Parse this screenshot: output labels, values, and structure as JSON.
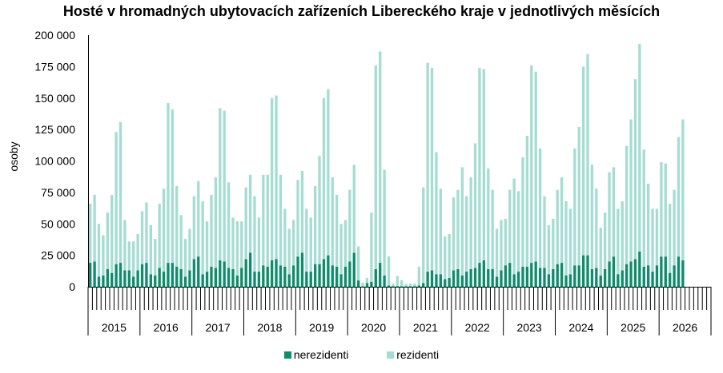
{
  "chart_data": {
    "type": "bar",
    "stacked": true,
    "title": "Hosté v hromadných ubytovacích zařízeních Libereckého kraje v jednotlivých měsících",
    "ylabel": "osoby",
    "xlabel": "",
    "ylim": [
      0,
      200000
    ],
    "yticks": [
      0,
      25000,
      50000,
      75000,
      100000,
      125000,
      150000,
      175000,
      200000
    ],
    "ytick_labels": [
      "0",
      "25 000",
      "50 000",
      "75 000",
      "100 000",
      "125 000",
      "150 000",
      "175 000",
      "200 000"
    ],
    "years": [
      "2015",
      "2016",
      "2017",
      "2018",
      "2019",
      "2020",
      "2021",
      "2022",
      "2023",
      "2024",
      "2025",
      "2026"
    ],
    "months_per_year": 12,
    "legend_position": "bottom",
    "grid": false,
    "colors": {
      "nerezidenti": "#0e8c6c",
      "rezidenti": "#a6ddd2"
    },
    "series": [
      {
        "name": "nerezidenti",
        "values": [
          19000,
          20000,
          8000,
          9000,
          14000,
          11000,
          18000,
          19000,
          13000,
          13000,
          8000,
          13000,
          18000,
          19000,
          10000,
          9000,
          15000,
          12000,
          19000,
          19000,
          16000,
          14000,
          8000,
          13000,
          22000,
          24000,
          10000,
          12000,
          16000,
          15000,
          21000,
          20000,
          15000,
          14000,
          9000,
          15000,
          22000,
          27000,
          12000,
          12000,
          17000,
          16000,
          21000,
          22000,
          17000,
          16000,
          10000,
          17000,
          24000,
          27000,
          12000,
          12000,
          18000,
          18000,
          22000,
          25000,
          17000,
          16000,
          10000,
          16000,
          20000,
          27000,
          5000,
          300,
          3000,
          4000,
          14000,
          19000,
          9000,
          1000,
          500,
          500,
          300,
          300,
          400,
          500,
          1000,
          3000,
          12000,
          13000,
          10000,
          10000,
          6000,
          7000,
          13000,
          14000,
          9000,
          12000,
          14000,
          15000,
          19000,
          21000,
          14000,
          14000,
          8000,
          13000,
          17000,
          19000,
          10000,
          12000,
          16000,
          16000,
          19000,
          20000,
          15000,
          15000,
          10000,
          14000,
          18000,
          19000,
          9000,
          10000,
          17000,
          17000,
          25000,
          25000,
          14000,
          15000,
          9000,
          14000,
          20000,
          24000,
          10000,
          13000,
          18000,
          20000,
          22000,
          28000,
          16000,
          17000,
          12000,
          17000,
          24000,
          24000,
          11000,
          17000,
          24000,
          21000
        ]
      },
      {
        "name": "rezidenti",
        "values": [
          47000,
          53000,
          42000,
          32000,
          45000,
          62000,
          105000,
          112000,
          40000,
          23000,
          28000,
          29000,
          42000,
          48000,
          39000,
          29000,
          51000,
          66000,
          127000,
          122000,
          64000,
          43000,
          30000,
          33000,
          50000,
          60000,
          58000,
          40000,
          57000,
          72000,
          121000,
          120000,
          68000,
          41000,
          43000,
          37000,
          57000,
          62000,
          60000,
          43000,
          72000,
          73000,
          129000,
          130000,
          72000,
          46000,
          36000,
          36000,
          61000,
          65000,
          50000,
          43000,
          62000,
          86000,
          128000,
          132000,
          70000,
          57000,
          40000,
          37000,
          57000,
          70000,
          27000,
          3000,
          4000,
          55000,
          162000,
          168000,
          84000,
          23000,
          2000,
          8000,
          5000,
          2000,
          2000,
          2000,
          15000,
          76000,
          166000,
          161000,
          97000,
          68000,
          34000,
          35000,
          58000,
          63000,
          86000,
          60000,
          73000,
          99000,
          155000,
          152000,
          80000,
          63000,
          38000,
          40000,
          37000,
          58000,
          76000,
          64000,
          87000,
          104000,
          157000,
          151000,
          95000,
          57000,
          39000,
          40000,
          59000,
          68000,
          59000,
          52000,
          93000,
          110000,
          150000,
          160000,
          83000,
          63000,
          38000,
          45000,
          71000,
          71000,
          52000,
          55000,
          94000,
          113000,
          143000,
          165000,
          93000,
          65000,
          50000,
          45000,
          75000,
          74000,
          55000,
          60000,
          95000,
          112000
        ]
      }
    ]
  }
}
